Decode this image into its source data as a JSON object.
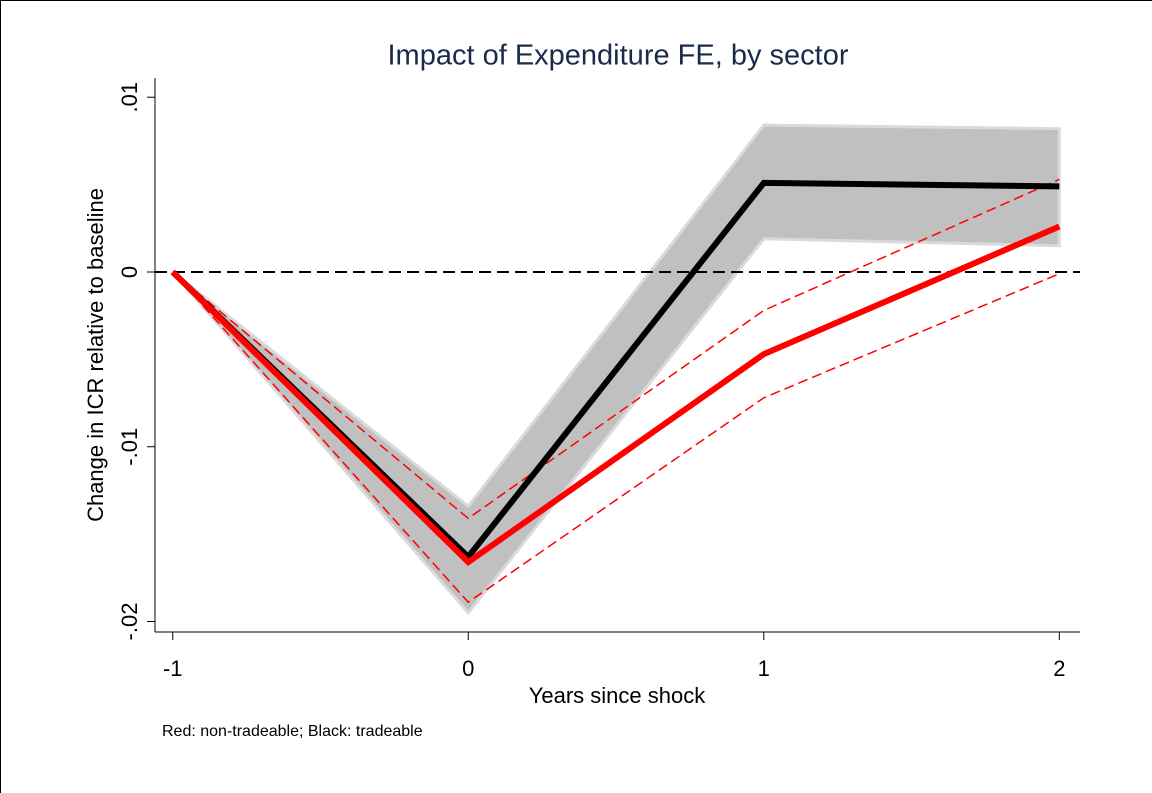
{
  "chart_data": {
    "type": "line",
    "title": "Impact of Expenditure FE, by sector",
    "x_label": "Years since shock",
    "y_label": "Change in ICR relative to baseline",
    "note": "Red: non-tradeable; Black: tradeable",
    "x": [
      -1,
      0,
      1,
      2
    ],
    "series": [
      {
        "color": "#000000",
        "values": [
          0,
          -0.0163,
          0.0051,
          0.0049
        ],
        "lower": [
          0,
          -0.0195,
          0.0019,
          0.0015
        ],
        "upper": [
          0,
          -0.0134,
          0.0084,
          0.0082
        ],
        "ci_style": "band",
        "ci_color": "#c0c0c0"
      },
      {
        "color": "#ff0000",
        "values": [
          0,
          -0.0166,
          -0.0047,
          0.0026
        ],
        "lower": [
          0,
          -0.0189,
          -0.0072,
          -0.0001
        ],
        "upper": [
          0,
          -0.0141,
          -0.0022,
          0.0053
        ],
        "ci_style": "dashed",
        "ci_color": "#ff0000"
      }
    ],
    "xlim": [
      -1.06,
      2.07
    ],
    "ylim": [
      -0.0206,
      0.0111
    ],
    "xticks": [
      -1,
      0,
      1,
      2
    ],
    "yticks": [
      {
        "value": -0.02,
        "label": "-.02"
      },
      {
        "value": -0.01,
        "label": "-.01"
      },
      0,
      {
        "value": 0.01,
        "label": ".01"
      }
    ],
    "hline": 0
  }
}
